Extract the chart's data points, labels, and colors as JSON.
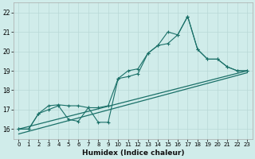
{
  "xlabel": "Humidex (Indice chaleur)",
  "bg_color": "#d0ecea",
  "grid_color": "#b8d8d6",
  "line_color": "#1a7068",
  "xlim": [
    -0.5,
    23.5
  ],
  "ylim": [
    15.5,
    22.5
  ],
  "xticks": [
    0,
    1,
    2,
    3,
    4,
    5,
    6,
    7,
    8,
    9,
    10,
    11,
    12,
    13,
    14,
    15,
    16,
    17,
    18,
    19,
    20,
    21,
    22,
    23
  ],
  "yticks": [
    16,
    17,
    18,
    19,
    20,
    21,
    22
  ],
  "line1_x": [
    0,
    1,
    2,
    3,
    4,
    5,
    6,
    7,
    8,
    9,
    10,
    11,
    12,
    13,
    14,
    15,
    16,
    17,
    18,
    19,
    20,
    21,
    22,
    23
  ],
  "line1_y": [
    16.0,
    16.0,
    16.8,
    17.0,
    17.2,
    16.5,
    16.4,
    17.1,
    16.35,
    16.35,
    18.6,
    19.0,
    19.1,
    19.9,
    20.3,
    20.4,
    20.85,
    21.8,
    20.1,
    19.6,
    19.6,
    19.2,
    19.0,
    19.0
  ],
  "line2_x": [
    0,
    1,
    2,
    3,
    4,
    5,
    6,
    7,
    8,
    9,
    10,
    11,
    12,
    13,
    14,
    15,
    16,
    17,
    18,
    19,
    20,
    21,
    22,
    23
  ],
  "line2_y": [
    16.0,
    16.0,
    16.8,
    17.2,
    17.25,
    17.2,
    17.2,
    17.1,
    17.1,
    17.2,
    18.6,
    18.7,
    18.85,
    19.9,
    20.3,
    21.0,
    20.85,
    21.8,
    20.1,
    19.6,
    19.6,
    19.2,
    19.0,
    19.0
  ],
  "trend1_x": [
    0,
    23
  ],
  "trend1_y": [
    16.0,
    19.0
  ],
  "trend2_x": [
    0,
    23
  ],
  "trend2_y": [
    15.75,
    18.9
  ]
}
